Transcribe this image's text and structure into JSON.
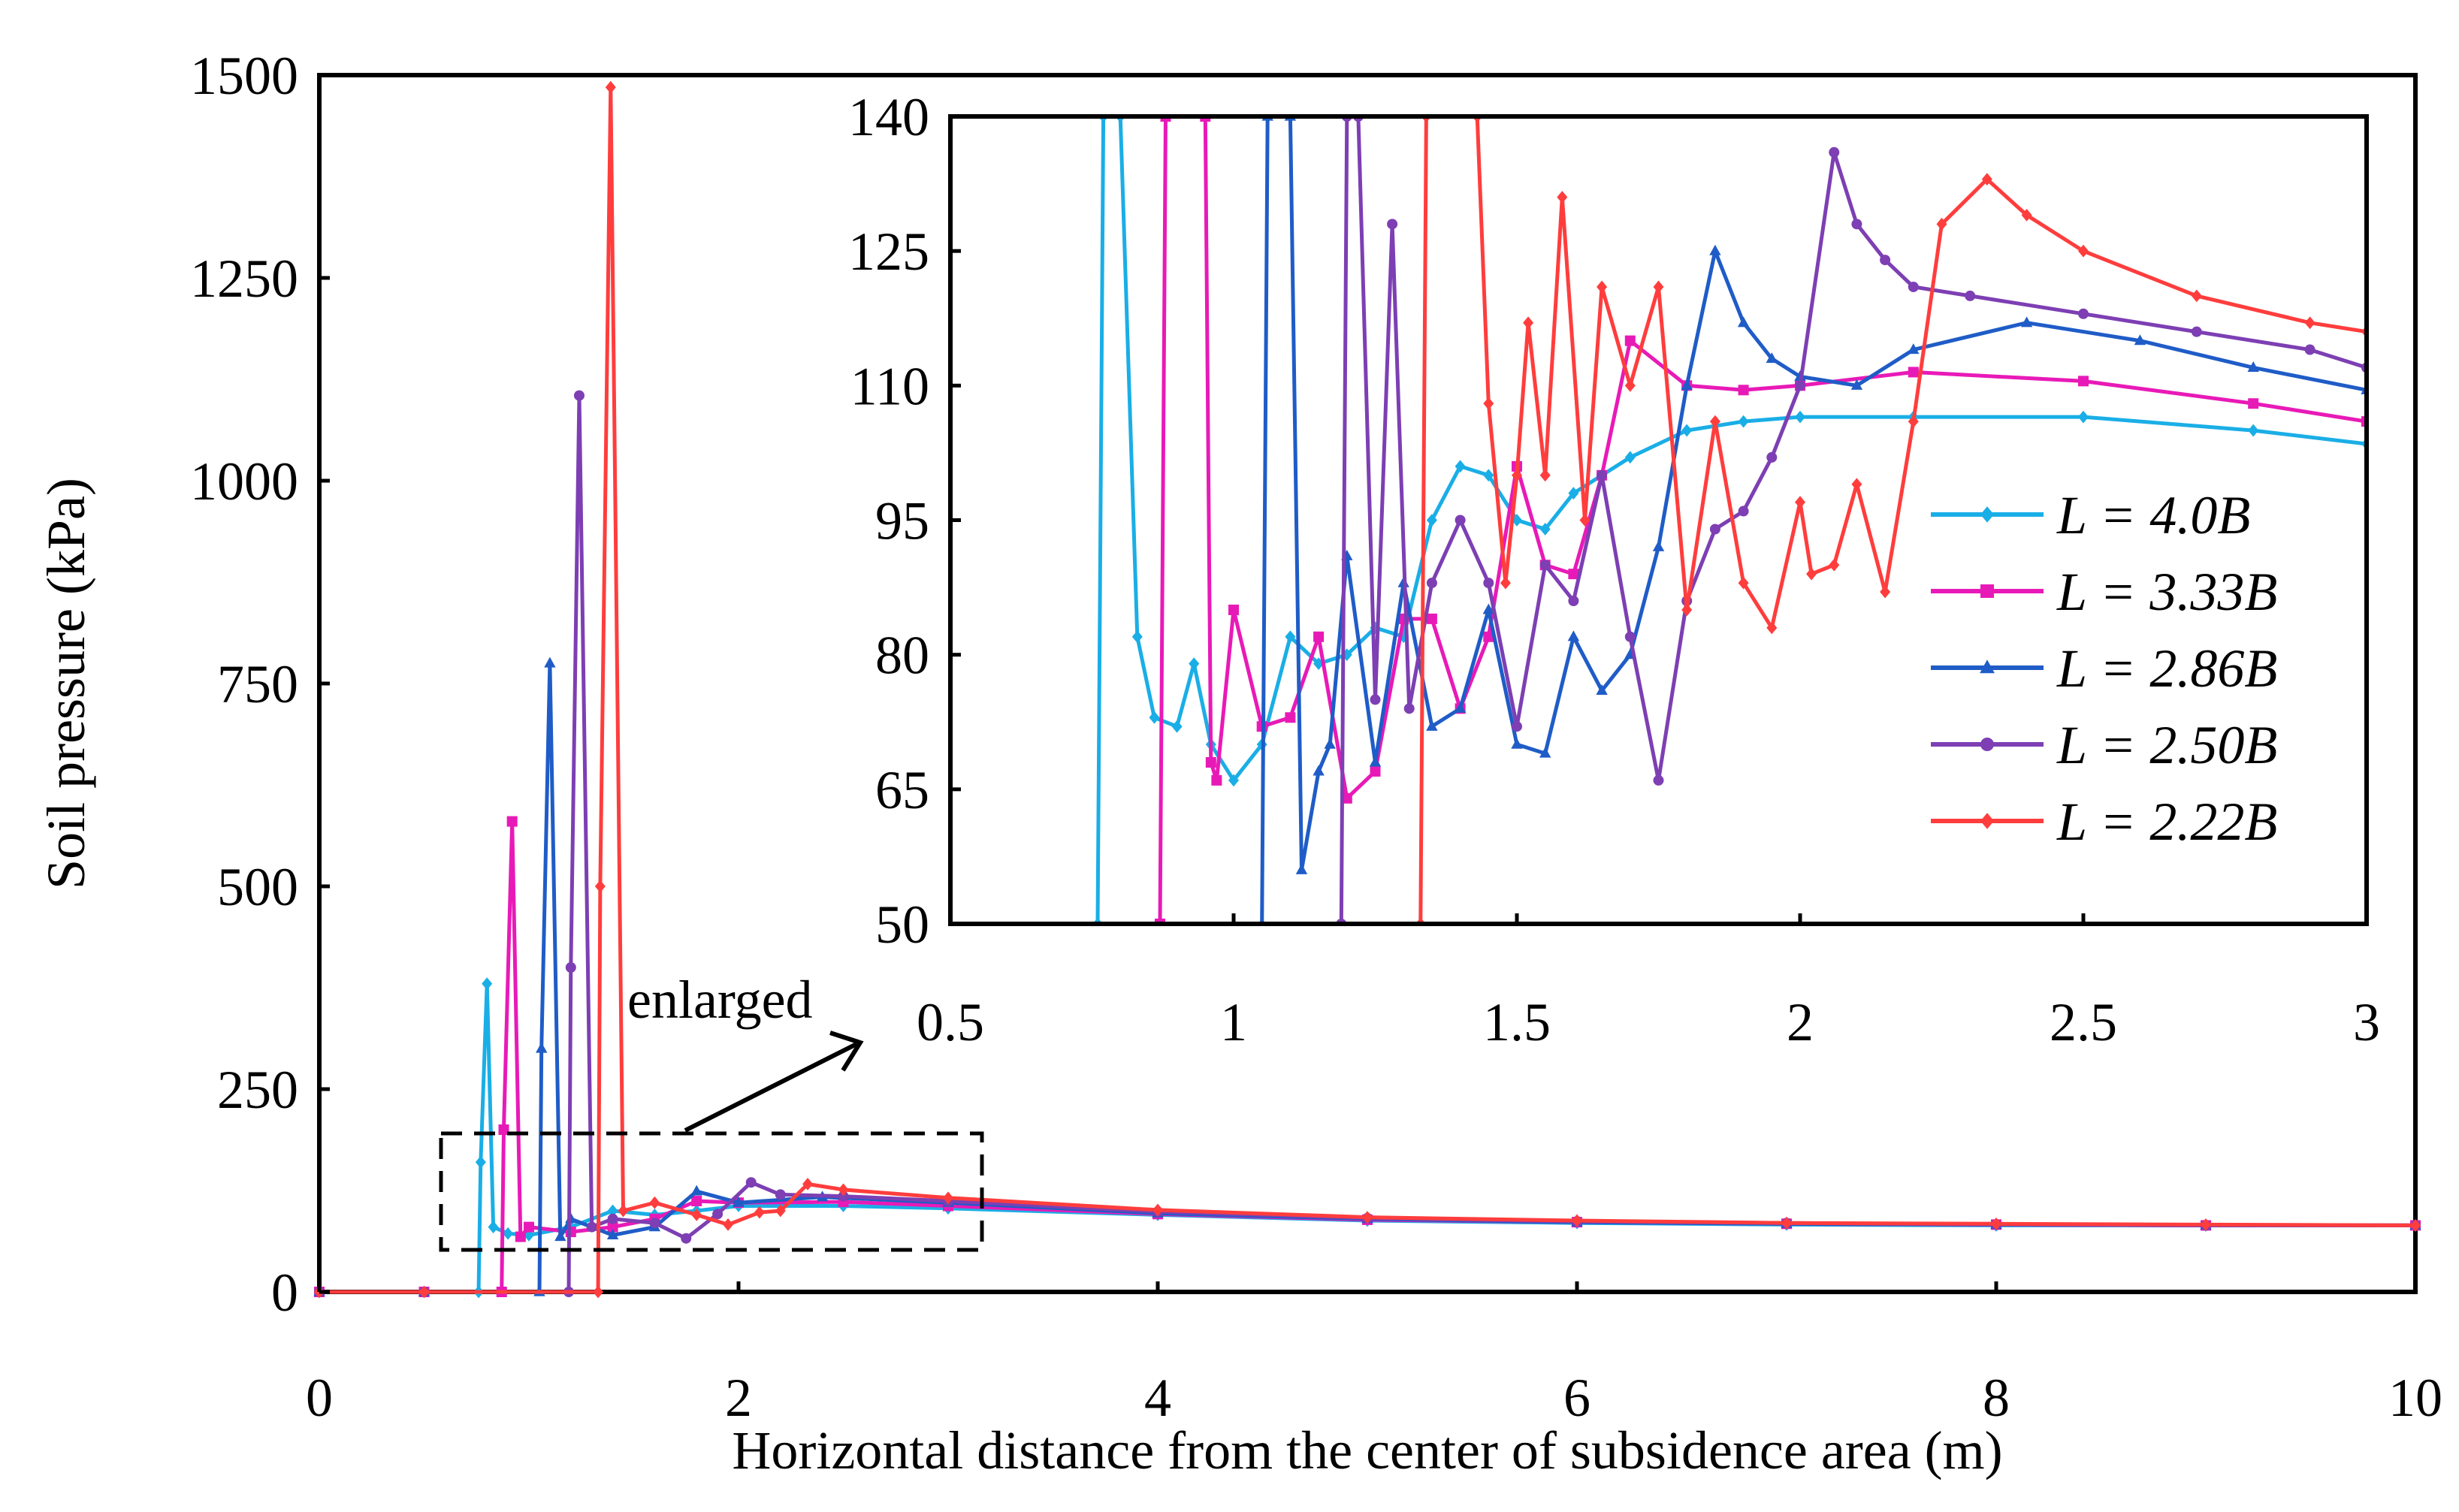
{
  "chart_data": [
    {
      "id": "main",
      "type": "line",
      "title": "",
      "xlabel": "Horizontal distance from the center of subsidence area (m)",
      "ylabel": "Soil pressure (kPa)",
      "xlim": [
        0,
        10
      ],
      "ylim": [
        0,
        1500
      ],
      "xticks": [
        0,
        2,
        4,
        6,
        8,
        10
      ],
      "xtick_labels": [
        "0",
        "2",
        "4",
        "6",
        "8",
        "10"
      ],
      "yticks": [
        0,
        250,
        500,
        750,
        1000,
        1250,
        1500
      ],
      "ytick_labels": [
        "0",
        "250",
        "500",
        "750",
        "1000",
        "1250",
        "1500"
      ],
      "grid": false,
      "annotation": "enlarged",
      "series": [
        {
          "name": "L = 4.0B",
          "color": "#1AAEE6",
          "marker": "diamond",
          "x": [
            0,
            0.5,
            0.76,
            0.77,
            0.8,
            0.83,
            0.9,
            1.0,
            1.2,
            1.4,
            1.6,
            1.8,
            2.0,
            2.5,
            3.0,
            4,
            5,
            6,
            7,
            8,
            9,
            10
          ],
          "y": [
            0,
            0,
            0,
            160,
            380,
            80,
            72,
            70,
            80,
            100,
            95,
            100,
            106,
            106,
            103,
            95,
            88,
            85,
            83,
            82,
            82,
            82
          ]
        },
        {
          "name": "L = 3.33B",
          "color": "#E81AB7",
          "marker": "square",
          "x": [
            0,
            0.5,
            0.87,
            0.88,
            0.92,
            0.96,
            1.0,
            1.2,
            1.4,
            1.6,
            1.8,
            2.0,
            2.5,
            3.0,
            4,
            5,
            6,
            7,
            8,
            9,
            10
          ],
          "y": [
            0,
            0,
            0,
            200,
            580,
            68,
            80,
            74,
            80,
            90,
            112,
            110,
            111,
            106,
            96,
            89,
            86,
            84,
            83,
            82,
            82
          ]
        },
        {
          "name": "L = 2.86B",
          "color": "#1F5CC7",
          "marker": "triangle",
          "x": [
            0,
            0.5,
            1.05,
            1.06,
            1.1,
            1.15,
            1.2,
            1.4,
            1.6,
            1.8,
            2.0,
            2.4,
            3.0,
            4,
            5,
            6,
            7,
            8,
            9,
            10
          ],
          "y": [
            0,
            0,
            0,
            300,
            775,
            68,
            90,
            70,
            80,
            124,
            110,
            117,
            110,
            97,
            90,
            86,
            84,
            83,
            82,
            82
          ]
        },
        {
          "name": "L = 2.50B",
          "color": "#7D3FB3",
          "marker": "circle",
          "x": [
            0,
            0.5,
            1.19,
            1.2,
            1.24,
            1.3,
            1.4,
            1.6,
            1.75,
            1.9,
            2.06,
            2.2,
            2.5,
            3.0,
            4,
            5,
            6,
            7,
            8,
            9,
            10
          ],
          "y": [
            0,
            0,
            0,
            400,
            1105,
            80,
            90,
            85,
            66,
            96,
            135,
            120,
            118,
            112,
            99,
            91,
            87,
            85,
            83,
            82,
            82
          ]
        },
        {
          "name": "L = 2.22B",
          "color": "#FF3D3D",
          "marker": "diamond",
          "x": [
            0,
            0.5,
            1.33,
            1.34,
            1.39,
            1.45,
            1.6,
            1.8,
            1.95,
            2.1,
            2.2,
            2.33,
            2.5,
            3.0,
            4,
            5,
            6,
            7,
            8,
            9,
            10
          ],
          "y": [
            0,
            0,
            0,
            500,
            1485,
            100,
            110,
            95,
            83,
            98,
            100,
            133,
            126,
            116,
            101,
            92,
            88,
            85,
            84,
            83,
            82
          ]
        }
      ]
    },
    {
      "id": "inset",
      "type": "line",
      "title": "",
      "xlim": [
        0.5,
        3
      ],
      "ylim": [
        50,
        140
      ],
      "xticks": [
        0.5,
        1,
        1.5,
        2,
        2.5,
        3
      ],
      "xtick_labels": [
        "0.5",
        "1",
        "1.5",
        "2",
        "2.5",
        "3"
      ],
      "yticks": [
        50,
        65,
        80,
        95,
        110,
        125,
        140
      ],
      "ytick_labels": [
        "50",
        "65",
        "80",
        "95",
        "110",
        "125",
        "140"
      ],
      "grid": false,
      "legend": [
        "L = 4.0B",
        "L = 3.33B",
        "L = 2.86B",
        "L = 2.50B",
        "L = 2.22B"
      ],
      "legend_position": "right",
      "series": [
        {
          "name": "L = 4.0B",
          "color": "#1AAEE6",
          "marker": "diamond",
          "x": [
            0.76,
            0.77,
            0.8,
            0.83,
            0.86,
            0.9,
            0.93,
            0.96,
            1.0,
            1.05,
            1.1,
            1.15,
            1.2,
            1.25,
            1.3,
            1.35,
            1.4,
            1.45,
            1.5,
            1.55,
            1.6,
            1.7,
            1.8,
            1.9,
            2.0,
            2.2,
            2.5,
            2.8,
            3.0
          ],
          "y": [
            50,
            140,
            140,
            82,
            73,
            72,
            79,
            70,
            66,
            70,
            82,
            79,
            80,
            83,
            82,
            95,
            101,
            100,
            95,
            94,
            98,
            102,
            105,
            106,
            106.5,
            106.5,
            106.5,
            105,
            103.5
          ]
        },
        {
          "name": "L = 3.33B",
          "color": "#E81AB7",
          "marker": "square",
          "x": [
            0.87,
            0.88,
            0.95,
            0.96,
            0.97,
            1.0,
            1.05,
            1.1,
            1.15,
            1.2,
            1.25,
            1.3,
            1.35,
            1.4,
            1.45,
            1.5,
            1.55,
            1.6,
            1.65,
            1.7,
            1.8,
            1.9,
            2.0,
            2.2,
            2.5,
            2.8,
            3.0
          ],
          "y": [
            50,
            140,
            140,
            68,
            66,
            85,
            72,
            73,
            82,
            64,
            67,
            84,
            84,
            74,
            82,
            101,
            90,
            89,
            100,
            115,
            110,
            109.5,
            110,
            111.5,
            110.5,
            108,
            106
          ]
        },
        {
          "name": "L = 2.86B",
          "color": "#1F5CC7",
          "marker": "triangle",
          "x": [
            1.05,
            1.06,
            1.1,
            1.12,
            1.15,
            1.17,
            1.2,
            1.25,
            1.3,
            1.35,
            1.4,
            1.45,
            1.5,
            1.55,
            1.6,
            1.65,
            1.7,
            1.75,
            1.8,
            1.85,
            1.9,
            1.95,
            2.0,
            2.1,
            2.2,
            2.4,
            2.6,
            2.8,
            3.0
          ],
          "y": [
            50,
            140,
            140,
            56,
            67,
            70,
            91,
            68,
            88,
            72,
            74,
            85,
            70,
            69,
            82,
            76,
            80,
            92,
            110,
            125,
            117,
            113,
            111,
            110,
            114,
            117,
            115,
            112,
            109.5
          ]
        },
        {
          "name": "L = 2.50B",
          "color": "#7D3FB3",
          "marker": "circle",
          "x": [
            1.19,
            1.2,
            1.22,
            1.25,
            1.28,
            1.31,
            1.35,
            1.4,
            1.45,
            1.5,
            1.55,
            1.6,
            1.65,
            1.7,
            1.75,
            1.8,
            1.85,
            1.9,
            1.95,
            2.0,
            2.06,
            2.1,
            2.15,
            2.2,
            2.3,
            2.5,
            2.7,
            2.9,
            3.0
          ],
          "y": [
            50,
            140,
            140,
            75,
            128,
            74,
            88,
            95,
            88,
            72,
            90,
            86,
            100,
            82,
            66,
            86,
            94,
            96,
            102,
            110,
            136,
            128,
            124,
            121,
            120,
            118,
            116,
            114,
            112
          ]
        },
        {
          "name": "L = 2.22B",
          "color": "#FF3D3D",
          "marker": "diamond",
          "x": [
            1.33,
            1.34,
            1.43,
            1.45,
            1.48,
            1.5,
            1.52,
            1.55,
            1.58,
            1.62,
            1.65,
            1.7,
            1.75,
            1.8,
            1.85,
            1.9,
            1.95,
            2.0,
            2.02,
            2.06,
            2.1,
            2.15,
            2.2,
            2.25,
            2.33,
            2.4,
            2.5,
            2.7,
            2.9,
            3.0
          ],
          "y": [
            50,
            140,
            140,
            108,
            88,
            100,
            117,
            100,
            131,
            95,
            121,
            110,
            121,
            85,
            106,
            88,
            83,
            97,
            89,
            90,
            99,
            87,
            106,
            128,
            133,
            129,
            125,
            120,
            117,
            116
          ]
        }
      ]
    }
  ]
}
